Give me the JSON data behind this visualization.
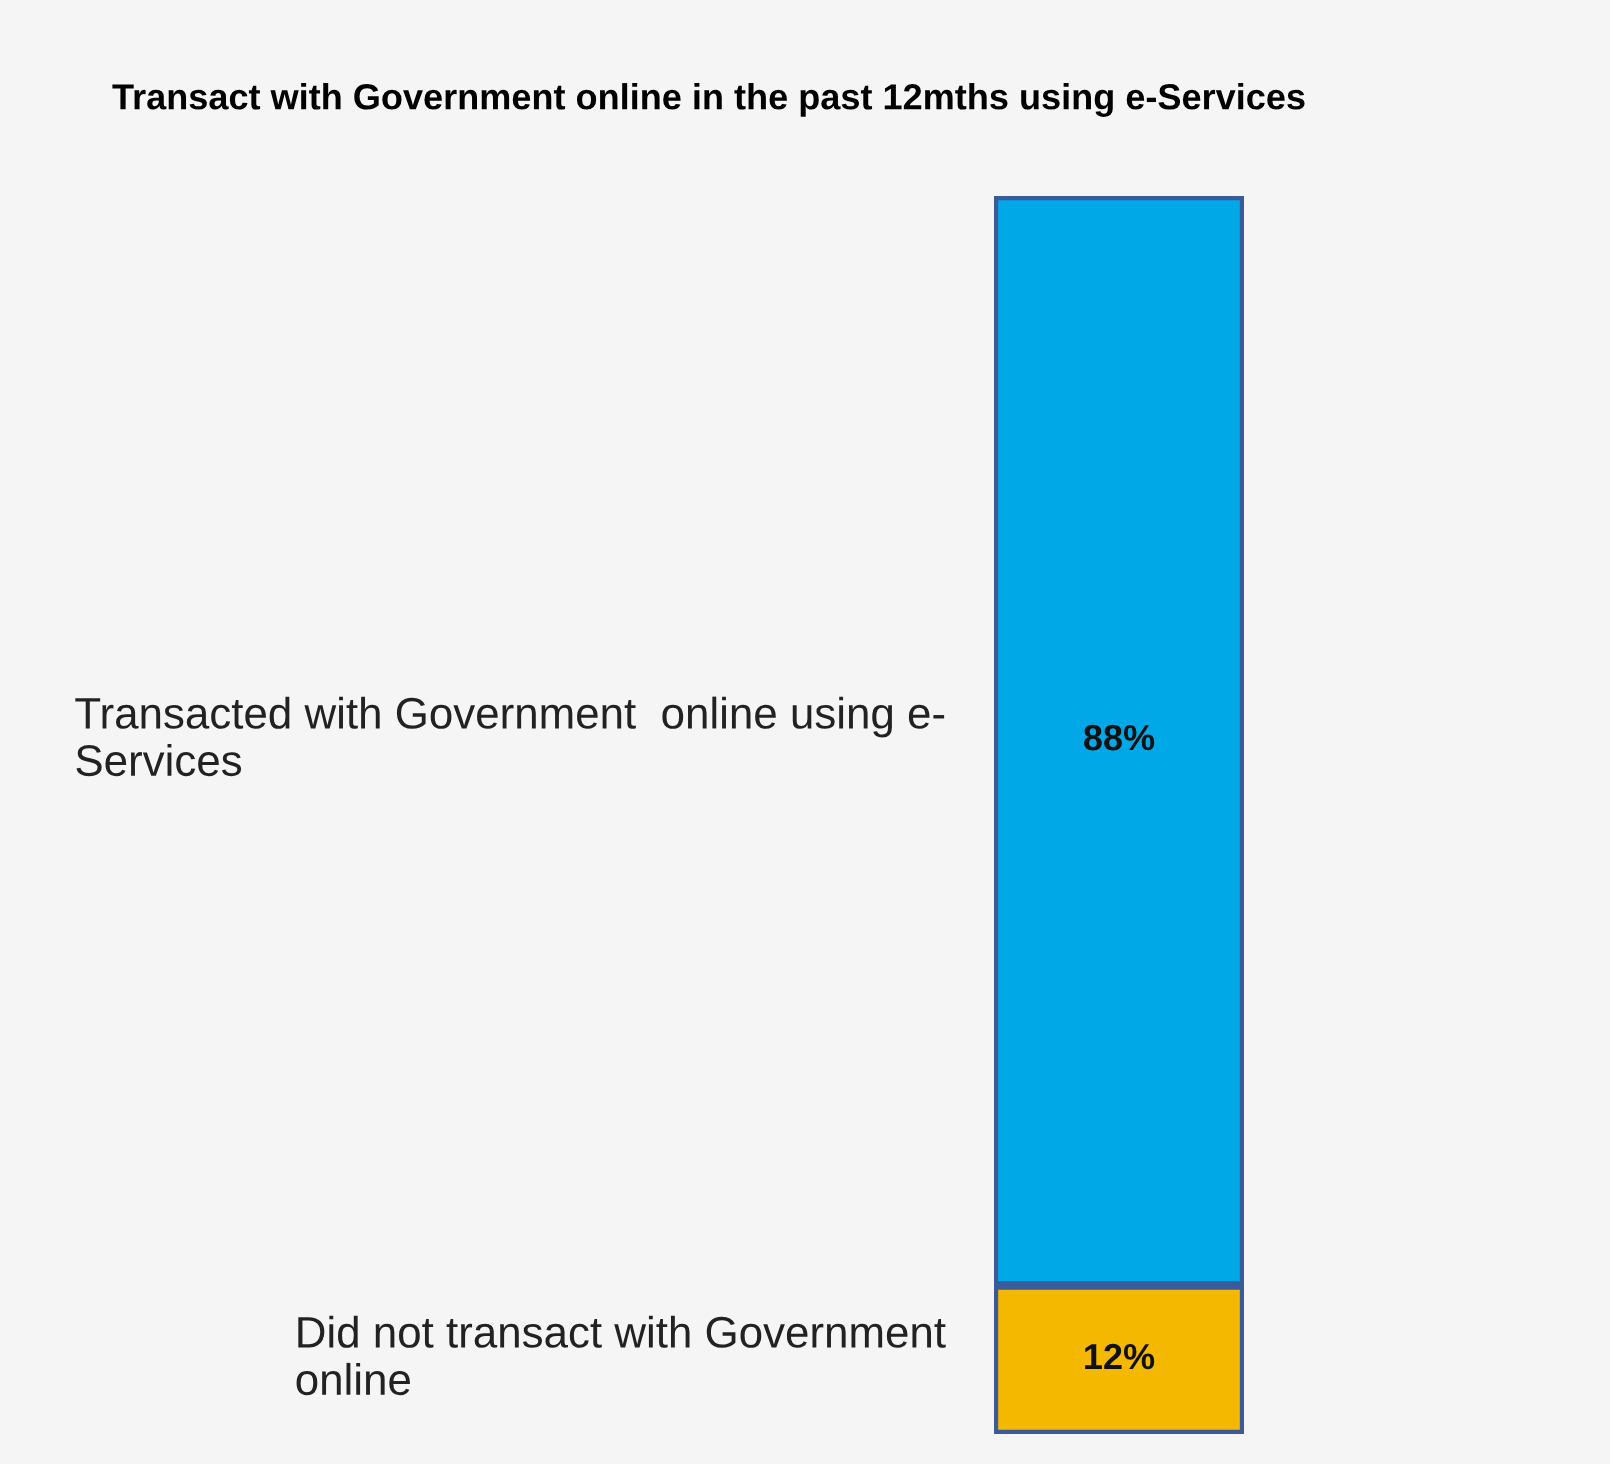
{
  "chart_data": {
    "type": "bar",
    "title": "Transact with Government online in the past 12mths using e-Services",
    "categories": [
      null
    ],
    "stacked": true,
    "series": [
      {
        "name": "Did not transact with Government\nonline",
        "color": "#f5b800",
        "values": [
          12
        ],
        "value_labels": [
          "12%"
        ]
      },
      {
        "name": "Transacted with Government  online using e-\nServices",
        "color": "#00a8e8",
        "values": [
          88
        ],
        "value_labels": [
          "88%"
        ]
      }
    ],
    "legend": false,
    "grid": false
  }
}
